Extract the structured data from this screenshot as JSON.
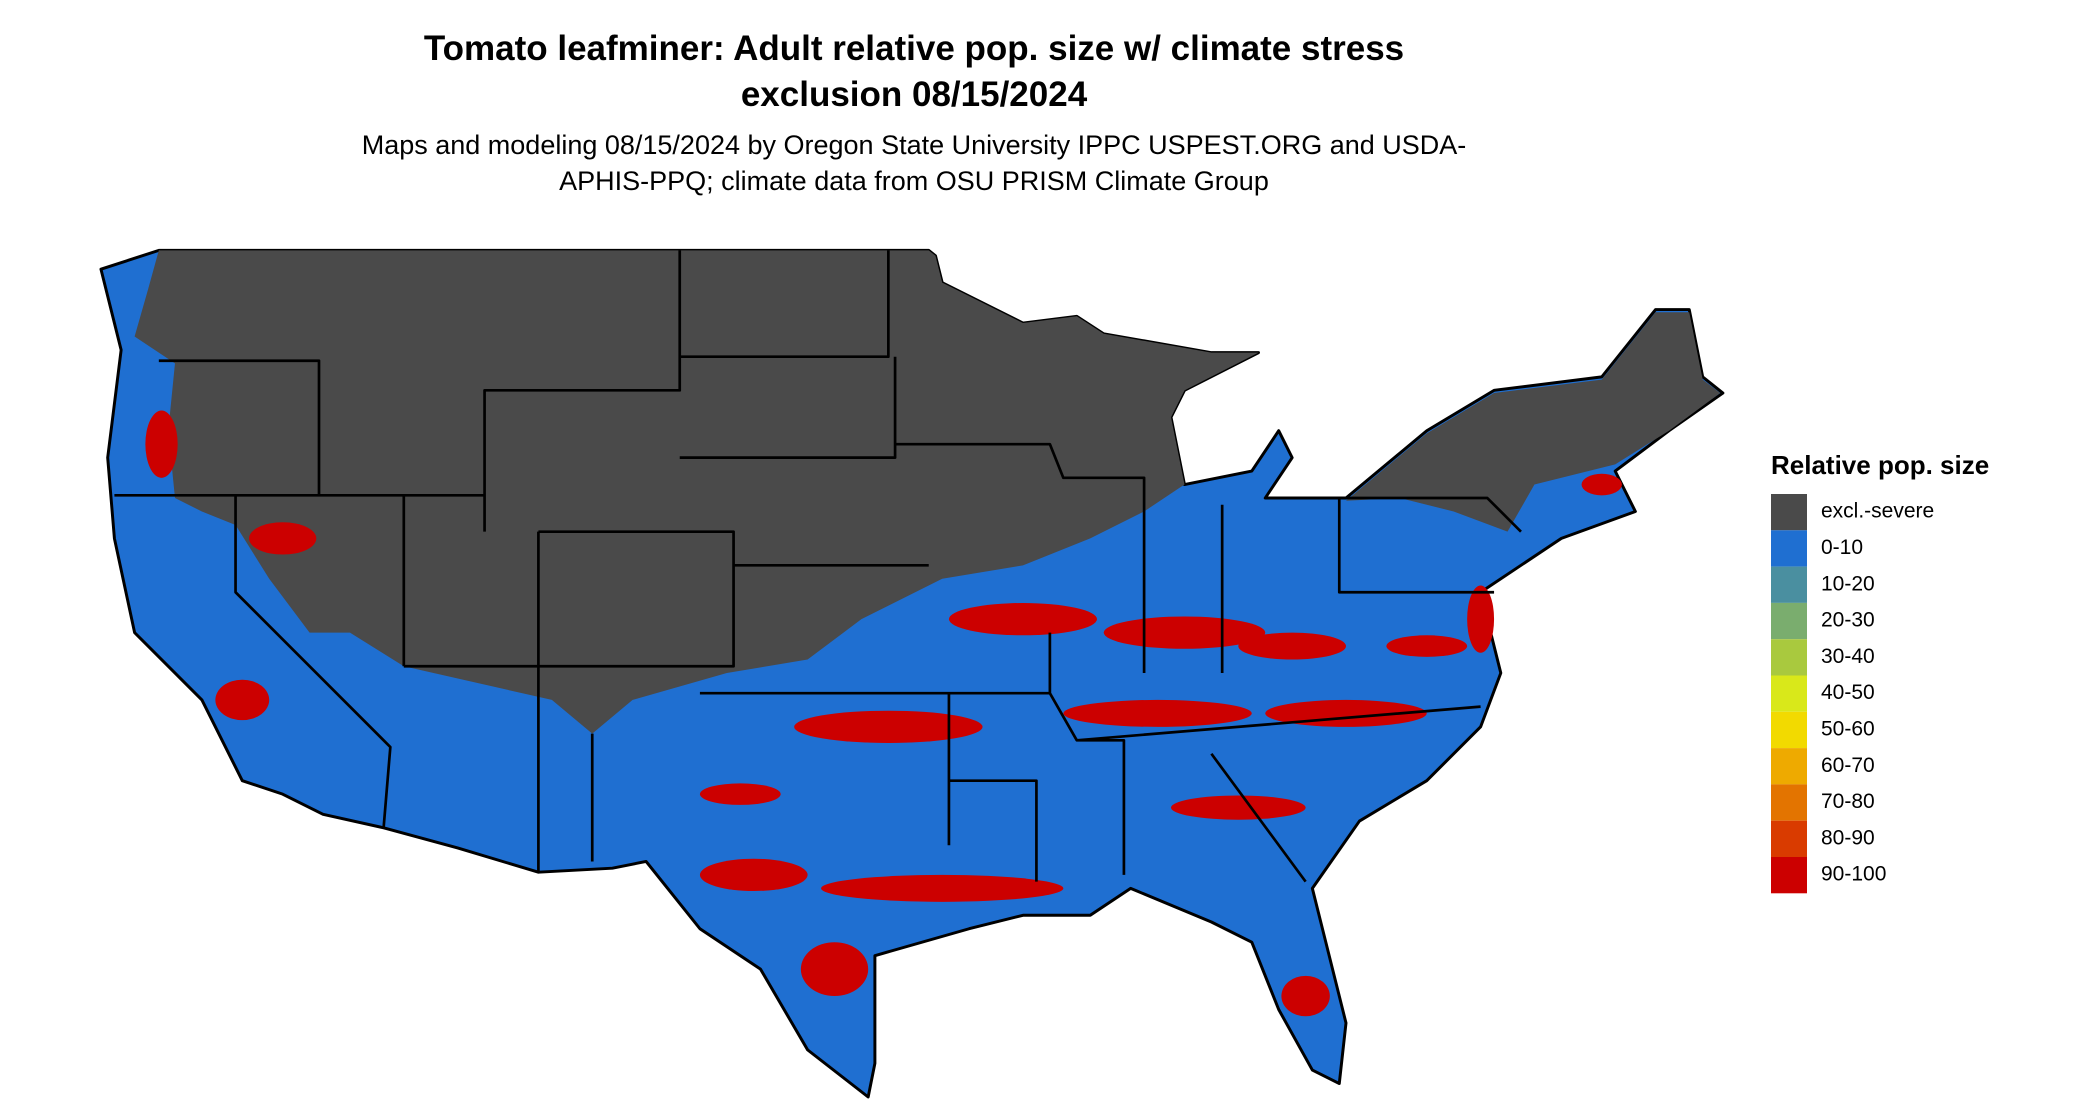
{
  "header": {
    "title": "Tomato leafminer: Adult relative pop. size w/ climate stress exclusion 08/15/2024",
    "subtitle": "Maps and modeling 08/15/2024 by Oregon State University IPPC USPEST.ORG and USDA-APHIS-PPQ; climate data from OSU PRISM Climate Group"
  },
  "legend": {
    "title": "Relative pop. size",
    "items": [
      {
        "label": "excl.-severe",
        "color": "#4a4a4a"
      },
      {
        "label": "0-10",
        "color": "#1f6fd1"
      },
      {
        "label": "10-20",
        "color": "#4a8fa0"
      },
      {
        "label": "20-30",
        "color": "#7aad6e"
      },
      {
        "label": "30-40",
        "color": "#a9c93e"
      },
      {
        "label": "40-50",
        "color": "#d9e81a"
      },
      {
        "label": "50-60",
        "color": "#f2da00"
      },
      {
        "label": "60-70",
        "color": "#eeaa00"
      },
      {
        "label": "70-80",
        "color": "#e37400"
      },
      {
        "label": "80-90",
        "color": "#d93b00"
      },
      {
        "label": "90-100",
        "color": "#cc0000"
      }
    ]
  }
}
